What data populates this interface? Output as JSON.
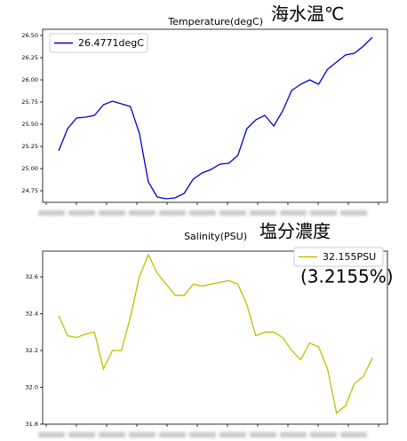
{
  "chart_data": [
    {
      "type": "line",
      "title": "Temperature(degC)",
      "annotations": [
        "海水温℃"
      ],
      "series": [
        {
          "name": "26.4771degC",
          "color": "#0000cc",
          "values": [
            25.2,
            25.45,
            25.57,
            25.58,
            25.6,
            25.72,
            25.76,
            25.73,
            25.7,
            25.4,
            24.85,
            24.68,
            24.66,
            24.67,
            24.72,
            24.88,
            24.95,
            24.99,
            25.05,
            25.06,
            25.15,
            25.45,
            25.55,
            25.6,
            25.48,
            25.65,
            25.88,
            25.95,
            26.0,
            25.95,
            26.12,
            26.2,
            26.28,
            26.3,
            26.38,
            26.48
          ]
        }
      ],
      "ylim": [
        24.62,
        26.57
      ],
      "yticks": [
        24.75,
        {
          "value": 25,
          "label": "25.00"
        },
        25.25,
        {
          "value": 25.5,
          "label": "25.50"
        },
        25.75,
        {
          "value": 26,
          "label": "26.00"
        },
        26.25,
        {
          "value": 26.5,
          "label": "26.50"
        }
      ],
      "legend": "upper left"
    },
    {
      "type": "line",
      "title": "Salinity(PSU)",
      "annotations": [
        "塩分濃度",
        "(3.2155%)"
      ],
      "series": [
        {
          "name": "32.155PSU",
          "color": "#bfbf00",
          "values": [
            32.39,
            32.28,
            32.27,
            32.29,
            32.3,
            32.1,
            32.2,
            32.2,
            32.38,
            32.6,
            32.72,
            32.62,
            32.56,
            32.5,
            32.5,
            32.56,
            32.55,
            32.56,
            32.57,
            32.58,
            32.56,
            32.45,
            32.28,
            32.3,
            32.3,
            32.27,
            32.2,
            32.15,
            32.24,
            32.22,
            32.1,
            31.86,
            31.9,
            32.02,
            32.06,
            32.16
          ]
        }
      ],
      "ylim": [
        31.8,
        32.74
      ],
      "yticks": [
        31.8,
        {
          "value": 32,
          "label": "32.0"
        },
        32.2,
        32.4,
        32.6
      ],
      "legend": "upper right"
    }
  ]
}
